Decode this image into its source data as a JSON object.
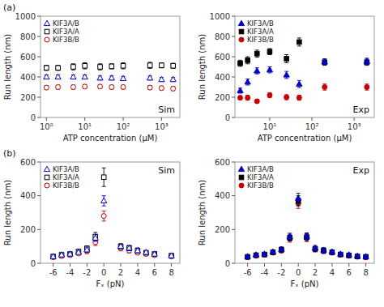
{
  "chart_data": [
    {
      "type": "scatter",
      "title": "(a)",
      "annotation": "Sim",
      "x_label": "ATP concentration (μM)",
      "y_label": "Run length (nm)",
      "log": "x",
      "legend": "upper left",
      "x": [
        1,
        2,
        5,
        10,
        25,
        50,
        100,
        500,
        1000,
        2000
      ],
      "series": [
        {
          "name": "KIF3A/B",
          "color": "#0000cc",
          "marker": "triangle-open",
          "values": [
            400,
            400,
            400,
            400,
            390,
            390,
            385,
            390,
            375,
            375
          ],
          "errors": [
            20,
            20,
            20,
            20,
            20,
            20,
            20,
            20,
            20,
            20
          ]
        },
        {
          "name": "KIF3A/A",
          "color": "#000000",
          "marker": "square-open",
          "values": [
            490,
            490,
            500,
            510,
            500,
            505,
            510,
            515,
            515,
            510
          ],
          "errors": [
            25,
            25,
            30,
            30,
            30,
            25,
            30,
            30,
            25,
            25
          ]
        },
        {
          "name": "KIF3B/B",
          "color": "#cc0000",
          "marker": "circle-open",
          "values": [
            295,
            300,
            300,
            305,
            305,
            300,
            300,
            295,
            290,
            285
          ],
          "errors": [
            20,
            20,
            20,
            20,
            20,
            20,
            20,
            20,
            20,
            20
          ]
        }
      ],
      "xlim": [
        0.7,
        3000
      ],
      "xticks": [
        {
          "value": 1,
          "label": "10⁰"
        },
        {
          "value": 10,
          "label": "10¹"
        },
        {
          "value": 100,
          "label": "10²"
        },
        {
          "value": 1000,
          "label": "10³"
        }
      ],
      "ylim": [
        0,
        1000
      ],
      "yticks": [
        0,
        200,
        400,
        600,
        800,
        1000
      ]
    },
    {
      "type": "scatter",
      "annotation": "Exp",
      "x_label": "ATP concentration (μM)",
      "y_label": "Run length (nm)",
      "log": "x",
      "legend": "upper left",
      "x": [
        2,
        3,
        5,
        10,
        25,
        50,
        200,
        2000
      ],
      "series": [
        {
          "name": "KIF3A/B",
          "color": "#0000cc",
          "marker": "triangle",
          "values": [
            265,
            350,
            460,
            470,
            420,
            330,
            550,
            555
          ],
          "errors": [
            25,
            30,
            30,
            30,
            35,
            35,
            30,
            30
          ]
        },
        {
          "name": "KIF3A/A",
          "color": "#000000",
          "marker": "square",
          "values": [
            535,
            565,
            630,
            650,
            580,
            745,
            545,
            545
          ],
          "errors": [
            30,
            35,
            35,
            30,
            40,
            40,
            30,
            30
          ]
        },
        {
          "name": "KIF3B/B",
          "color": "#cc0000",
          "marker": "circle",
          "values": [
            195,
            195,
            160,
            220,
            200,
            195,
            300,
            300
          ],
          "errors": [
            20,
            25,
            20,
            25,
            25,
            25,
            30,
            30
          ]
        }
      ],
      "xlim": [
        1.5,
        3000
      ],
      "xticks": [
        {
          "value": 10,
          "label": "10¹"
        },
        {
          "value": 100,
          "label": "10²"
        },
        {
          "value": 1000,
          "label": "10³"
        }
      ],
      "ylim": [
        0,
        1000
      ],
      "yticks": [
        0,
        200,
        400,
        600,
        800,
        1000
      ]
    },
    {
      "type": "scatter",
      "title": "(b)",
      "annotation": "Sim",
      "x_label": "Fₓ (pN)",
      "y_label": "Run length (nm)",
      "legend": "upper left",
      "x": [
        -6,
        -5,
        -4,
        -3,
        -2,
        -1,
        0,
        2,
        3,
        4,
        5,
        6,
        8
      ],
      "series": [
        {
          "name": "KIF3A/B",
          "color": "#0000cc",
          "marker": "triangle-open",
          "values": [
            40,
            50,
            55,
            65,
            80,
            150,
            370,
            100,
            90,
            75,
            65,
            55,
            45
          ],
          "errors": [
            10,
            10,
            10,
            10,
            15,
            20,
            30,
            15,
            15,
            15,
            10,
            10,
            10
          ]
        },
        {
          "name": "KIF3A/A",
          "color": "#000000",
          "marker": "square-open",
          "values": [
            40,
            50,
            55,
            70,
            88,
            158,
            510,
            100,
            90,
            75,
            62,
            55,
            45
          ],
          "errors": [
            10,
            10,
            10,
            10,
            15,
            25,
            55,
            15,
            15,
            15,
            10,
            10,
            10
          ]
        },
        {
          "name": "KIF3B/B",
          "color": "#cc0000",
          "marker": "circle-open",
          "values": [
            35,
            42,
            48,
            58,
            72,
            125,
            280,
            88,
            76,
            62,
            55,
            48,
            40
          ],
          "errors": [
            10,
            10,
            10,
            10,
            15,
            20,
            30,
            15,
            15,
            10,
            10,
            10,
            10
          ]
        }
      ],
      "xlim": [
        -7.5,
        9
      ],
      "xticks": [
        -6,
        -4,
        -2,
        0,
        2,
        4,
        6,
        8
      ],
      "ylim": [
        0,
        600
      ],
      "yticks": [
        0,
        200,
        400,
        600
      ]
    },
    {
      "type": "scatter",
      "annotation": "Exp",
      "x_label": "Fₓ (pN)",
      "y_label": "Run length (nm)",
      "legend": "upper left",
      "x": [
        -6,
        -5,
        -4,
        -3,
        -2,
        -1,
        0,
        1,
        2,
        3,
        4,
        5,
        6,
        7,
        8
      ],
      "series": [
        {
          "name": "KIF3A/B",
          "color": "#0000cc",
          "marker": "triangle",
          "values": [
            40,
            50,
            55,
            68,
            82,
            158,
            385,
            160,
            90,
            78,
            68,
            55,
            50,
            43,
            40
          ],
          "errors": [
            10,
            10,
            10,
            10,
            15,
            20,
            30,
            20,
            15,
            15,
            10,
            10,
            10,
            10,
            10
          ]
        },
        {
          "name": "KIF3A/A",
          "color": "#000000",
          "marker": "square",
          "values": [
            38,
            48,
            52,
            65,
            80,
            152,
            370,
            155,
            85,
            75,
            65,
            52,
            47,
            40,
            38
          ],
          "errors": [
            10,
            10,
            10,
            10,
            15,
            20,
            30,
            20,
            15,
            15,
            10,
            10,
            10,
            10,
            10
          ]
        },
        {
          "name": "KIF3B/B",
          "color": "#cc0000",
          "marker": "circle",
          "values": [
            35,
            44,
            50,
            62,
            76,
            145,
            355,
            148,
            82,
            72,
            62,
            50,
            44,
            38,
            35
          ],
          "errors": [
            10,
            10,
            10,
            10,
            15,
            20,
            30,
            20,
            15,
            15,
            10,
            10,
            10,
            10,
            10
          ]
        }
      ],
      "xlim": [
        -7.5,
        9
      ],
      "xticks": [
        -6,
        -4,
        -2,
        0,
        2,
        4,
        6,
        8
      ],
      "ylim": [
        0,
        600
      ],
      "yticks": [
        0,
        200,
        400,
        600
      ]
    }
  ]
}
